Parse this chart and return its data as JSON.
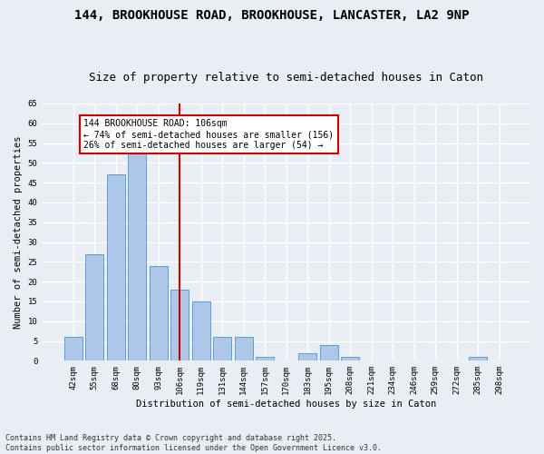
{
  "title1": "144, BROOKHOUSE ROAD, BROOKHOUSE, LANCASTER, LA2 9NP",
  "title2": "Size of property relative to semi-detached houses in Caton",
  "xlabel": "Distribution of semi-detached houses by size in Caton",
  "ylabel": "Number of semi-detached properties",
  "bar_labels": [
    "42sqm",
    "55sqm",
    "68sqm",
    "80sqm",
    "93sqm",
    "106sqm",
    "119sqm",
    "131sqm",
    "144sqm",
    "157sqm",
    "170sqm",
    "183sqm",
    "195sqm",
    "208sqm",
    "221sqm",
    "234sqm",
    "246sqm",
    "259sqm",
    "272sqm",
    "285sqm",
    "298sqm"
  ],
  "bar_values": [
    6,
    27,
    47,
    53,
    24,
    18,
    15,
    6,
    6,
    1,
    0,
    2,
    4,
    1,
    0,
    0,
    0,
    0,
    0,
    1,
    0
  ],
  "bar_color": "#aec6e8",
  "bar_edge_color": "#5a9fd4",
  "vline_color": "#cc0000",
  "annotation_title": "144 BROOKHOUSE ROAD: 106sqm",
  "annotation_line1": "← 74% of semi-detached houses are smaller (156)",
  "annotation_line2": "26% of semi-detached houses are larger (54) →",
  "annotation_box_color": "#ffffff",
  "annotation_box_edge": "#cc0000",
  "ylim": [
    0,
    65
  ],
  "yticks": [
    0,
    5,
    10,
    15,
    20,
    25,
    30,
    35,
    40,
    45,
    50,
    55,
    60,
    65
  ],
  "bg_color": "#e8eef4",
  "grid_color": "#ffffff",
  "footnote1": "Contains HM Land Registry data © Crown copyright and database right 2025.",
  "footnote2": "Contains public sector information licensed under the Open Government Licence v3.0.",
  "title_fontsize": 10,
  "subtitle_fontsize": 9,
  "axis_label_fontsize": 7.5,
  "tick_fontsize": 6.5,
  "annotation_fontsize": 7,
  "footnote_fontsize": 6
}
